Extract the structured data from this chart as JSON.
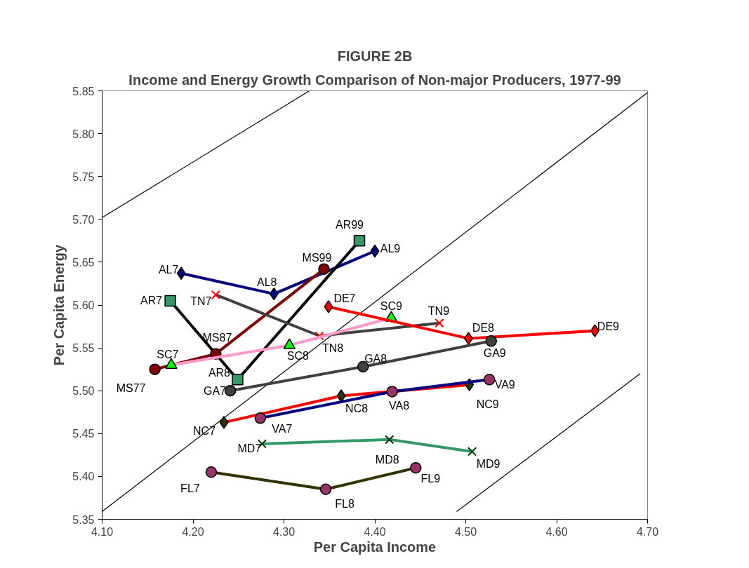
{
  "chart_data": {
    "type": "line",
    "title": "FIGURE 2B",
    "subtitle": "Income and Energy Growth Comparison of Non-major Producers, 1977-99",
    "xlabel": "Per Capita Income",
    "ylabel": "Per Capita Energy",
    "xlim": [
      4.1,
      4.7
    ],
    "xticks": [
      {
        "value": 4.1,
        "label": "4.10"
      },
      {
        "value": 4.2,
        "label": "4.20"
      },
      {
        "value": 4.3,
        "label": "4.30"
      },
      {
        "value": 4.4,
        "label": "4.40"
      },
      {
        "value": 4.5,
        "label": "4.50"
      },
      {
        "value": 4.6,
        "label": "4.60"
      },
      {
        "value": 4.7,
        "label": "4.70"
      }
    ],
    "ylim": [
      5.35,
      5.85
    ],
    "yticks": [
      {
        "value": 5.35,
        "label": "5.35"
      },
      {
        "value": 5.4,
        "label": "5.40"
      },
      {
        "value": 5.45,
        "label": "5.45"
      },
      {
        "value": 5.5,
        "label": "5.50"
      },
      {
        "value": 5.55,
        "label": "5.55"
      },
      {
        "value": 5.6,
        "label": "5.60"
      },
      {
        "value": 5.65,
        "label": "5.65"
      },
      {
        "value": 5.7,
        "label": "5.70"
      },
      {
        "value": 5.75,
        "label": "5.75"
      },
      {
        "value": 5.8,
        "label": "5.80"
      },
      {
        "value": 5.85,
        "label": "5.85"
      }
    ],
    "grid": false,
    "series": [
      {
        "x": [
          4.1,
          4.328
        ],
        "values": [
          5.702,
          5.85
        ],
        "color": "#000000",
        "marker": "none"
      },
      {
        "x": [
          4.1,
          4.7
        ],
        "values": [
          5.359,
          5.848
        ],
        "color": "#000000",
        "marker": "none"
      },
      {
        "x": [
          4.49,
          4.692
        ],
        "values": [
          5.359,
          5.52
        ],
        "color": "#000000",
        "marker": "none"
      },
      {
        "x": [
          4.187,
          4.289,
          4.4
        ],
        "values": [
          5.637,
          5.613,
          5.663
        ],
        "color": "#000080",
        "colors": [
          "#000080",
          "#000080",
          "#000080"
        ],
        "marker": "diamond"
      },
      {
        "x": [
          4.175,
          4.249,
          4.383
        ],
        "values": [
          5.605,
          5.513,
          5.675
        ],
        "color": "#000000",
        "colors": [
          "#339966",
          "#339966",
          "#339966"
        ],
        "marker": "square"
      },
      {
        "x": [
          4.158,
          4.225,
          4.344
        ],
        "values": [
          5.525,
          5.543,
          5.642
        ],
        "color": "#800000",
        "colors": [
          "#800000",
          "#800000",
          "#800000"
        ],
        "marker": "circle"
      },
      {
        "x": [
          4.225,
          4.339,
          4.471
        ],
        "values": [
          5.612,
          5.564,
          5.579
        ],
        "color": "#404040",
        "colors": [
          "#ff0000",
          "#ff0000",
          "#ff0000"
        ],
        "marker": "cross"
      },
      {
        "x": [
          4.176,
          4.306,
          4.418
        ],
        "values": [
          5.53,
          5.553,
          5.585
        ],
        "color": "#ff99cc",
        "colors": [
          "#00ff00",
          "#00ff00",
          "#00ff00"
        ],
        "marker": "triangle"
      },
      {
        "x": [
          4.349,
          4.503,
          4.642
        ],
        "values": [
          5.598,
          5.561,
          5.57
        ],
        "color": "#ff0000",
        "colors": [
          "#ff0000",
          "#ff0000",
          "#ff0000"
        ],
        "marker": "diamond"
      },
      {
        "x": [
          4.241,
          4.387,
          4.528
        ],
        "values": [
          5.5,
          5.528,
          5.558
        ],
        "color": "#404040",
        "colors": [
          "#404040",
          "#404040",
          "#404040"
        ],
        "marker": "circle"
      },
      {
        "x": [
          4.234,
          4.363,
          4.504
        ],
        "values": [
          5.463,
          5.494,
          5.507
        ],
        "color": "#ff0000",
        "colors": [
          "#333300",
          "#333300",
          "#333300"
        ],
        "marker": "diamond"
      },
      {
        "x": [
          4.274,
          4.419,
          4.526
        ],
        "values": [
          5.468,
          5.499,
          5.513
        ],
        "color": "#000080",
        "colors": [
          "#993366",
          "#993366",
          "#993366"
        ],
        "marker": "circle"
      },
      {
        "x": [
          4.276,
          4.416,
          4.507
        ],
        "values": [
          5.438,
          5.443,
          5.429
        ],
        "color": "#339966",
        "colors": [
          "#003300",
          "#003300",
          "#003300"
        ],
        "marker": "cross"
      },
      {
        "x": [
          4.22,
          4.346,
          4.445
        ],
        "values": [
          5.405,
          5.385,
          5.41
        ],
        "color": "#333300",
        "colors": [
          "#993366",
          "#993366",
          "#993366"
        ],
        "marker": "circle"
      }
    ],
    "annotations": [
      {
        "text": "AL7",
        "x": 4.187,
        "y": 5.637
      },
      {
        "text": "AL8",
        "x": 4.289,
        "y": 5.613
      },
      {
        "text": "AL9",
        "x": 4.4,
        "y": 5.663
      },
      {
        "text": "AR7",
        "x": 4.175,
        "y": 5.605
      },
      {
        "text": "AR8",
        "x": 4.249,
        "y": 5.513
      },
      {
        "text": "AR99",
        "x": 4.383,
        "y": 5.675
      },
      {
        "text": "MS77",
        "x": 4.158,
        "y": 5.525
      },
      {
        "text": "MS87",
        "x": 4.225,
        "y": 5.543
      },
      {
        "text": "MS99",
        "x": 4.344,
        "y": 5.642
      },
      {
        "text": "TN7",
        "x": 4.225,
        "y": 5.612
      },
      {
        "text": "TN8",
        "x": 4.339,
        "y": 5.564
      },
      {
        "text": "TN9",
        "x": 4.471,
        "y": 5.579
      },
      {
        "text": "SC7",
        "x": 4.176,
        "y": 5.53
      },
      {
        "text": "SC8",
        "x": 4.306,
        "y": 5.553
      },
      {
        "text": "SC9",
        "x": 4.418,
        "y": 5.585
      },
      {
        "text": "DE7",
        "x": 4.349,
        "y": 5.598
      },
      {
        "text": "DE8",
        "x": 4.503,
        "y": 5.561
      },
      {
        "text": "DE9",
        "x": 4.642,
        "y": 5.57
      },
      {
        "text": "GA7",
        "x": 4.241,
        "y": 5.5
      },
      {
        "text": "GA8",
        "x": 4.387,
        "y": 5.528
      },
      {
        "text": "GA9",
        "x": 4.528,
        "y": 5.558
      },
      {
        "text": "NC7",
        "x": 4.234,
        "y": 5.463
      },
      {
        "text": "NC8",
        "x": 4.363,
        "y": 5.494
      },
      {
        "text": "NC9",
        "x": 4.504,
        "y": 5.507
      },
      {
        "text": "VA7",
        "x": 4.274,
        "y": 5.468
      },
      {
        "text": "VA8",
        "x": 4.419,
        "y": 5.499
      },
      {
        "text": "VA9",
        "x": 4.526,
        "y": 5.513
      },
      {
        "text": "MD7",
        "x": 4.276,
        "y": 5.438
      },
      {
        "text": "MD8",
        "x": 4.416,
        "y": 5.443
      },
      {
        "text": "MD9",
        "x": 4.507,
        "y": 5.429
      },
      {
        "text": "FL7",
        "x": 4.22,
        "y": 5.405
      },
      {
        "text": "FL8",
        "x": 4.346,
        "y": 5.385
      },
      {
        "text": "FL9",
        "x": 4.445,
        "y": 5.41
      }
    ]
  }
}
